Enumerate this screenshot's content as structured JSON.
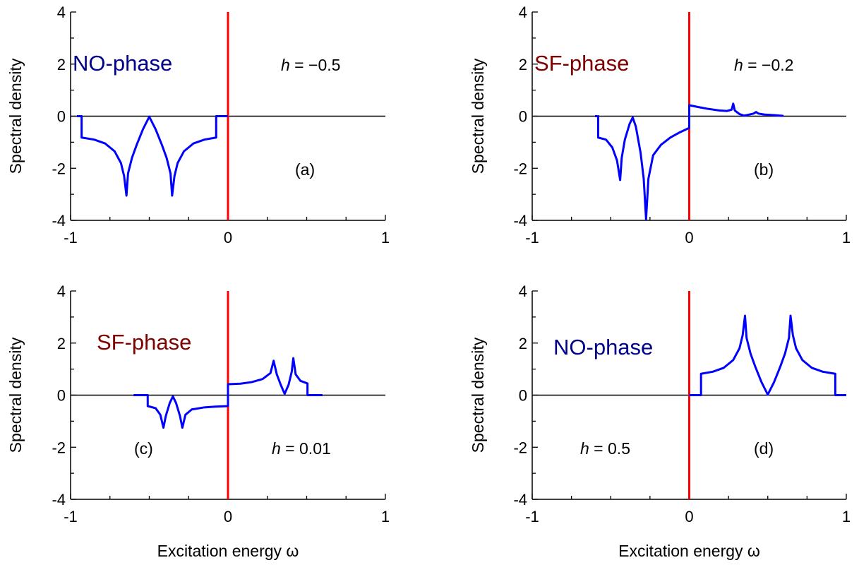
{
  "chart_data": [
    {
      "type": "line",
      "panel": "(a)",
      "phase_label": "NO-phase",
      "phase_color": "#00008b",
      "h_label": "h",
      "h_value": " = −0.5",
      "xlabel": "",
      "ylabel": "Spectral density",
      "xlim": [
        -1,
        1
      ],
      "ylim": [
        -4,
        4
      ],
      "xticks": [
        "-1",
        "0",
        "1"
      ],
      "yticks": [
        "-4",
        "-2",
        "0",
        "2",
        "4"
      ],
      "zero_line_color": "#000000",
      "marker_line_x": 0,
      "marker_line_color": "#ff0000",
      "series": [
        {
          "color": "#0000ff",
          "points": [
            [
              -0.96,
              0
            ],
            [
              -0.93,
              0
            ],
            [
              -0.93,
              -0.82
            ],
            [
              -0.85,
              -0.9
            ],
            [
              -0.78,
              -1.05
            ],
            [
              -0.72,
              -1.35
            ],
            [
              -0.68,
              -1.8
            ],
            [
              -0.66,
              -2.3
            ],
            [
              -0.645,
              -3.05
            ],
            [
              -0.635,
              -2.2
            ],
            [
              -0.61,
              -1.6
            ],
            [
              -0.58,
              -1.1
            ],
            [
              -0.54,
              -0.5
            ],
            [
              -0.5,
              -0.02
            ],
            [
              -0.46,
              -0.5
            ],
            [
              -0.42,
              -1.1
            ],
            [
              -0.39,
              -1.6
            ],
            [
              -0.365,
              -2.2
            ],
            [
              -0.355,
              -3.05
            ],
            [
              -0.34,
              -2.3
            ],
            [
              -0.32,
              -1.8
            ],
            [
              -0.28,
              -1.35
            ],
            [
              -0.22,
              -1.05
            ],
            [
              -0.15,
              -0.9
            ],
            [
              -0.075,
              -0.82
            ],
            [
              -0.075,
              0
            ],
            [
              0,
              0
            ]
          ]
        }
      ]
    },
    {
      "type": "line",
      "panel": "(b)",
      "phase_label": "SF-phase",
      "phase_color": "#800000",
      "h_label": "h",
      "h_value": " = −0.2",
      "xlabel": "",
      "ylabel": "Spectral density",
      "xlim": [
        -1,
        1
      ],
      "ylim": [
        -4,
        4
      ],
      "xticks": [
        "-1",
        "0",
        "1"
      ],
      "yticks": [
        "-4",
        "-2",
        "0",
        "2",
        "4"
      ],
      "zero_line_color": "#000000",
      "marker_line_x": 0,
      "marker_line_color": "#ff0000",
      "series": [
        {
          "color": "#0000ff",
          "points": [
            [
              -0.6,
              0
            ],
            [
              -0.58,
              0
            ],
            [
              -0.58,
              -0.82
            ],
            [
              -0.53,
              -0.9
            ],
            [
              -0.49,
              -1.2
            ],
            [
              -0.46,
              -1.7
            ],
            [
              -0.44,
              -2.45
            ],
            [
              -0.43,
              -1.6
            ],
            [
              -0.41,
              -0.9
            ],
            [
              -0.38,
              -0.3
            ],
            [
              -0.36,
              -0.05
            ],
            [
              -0.34,
              -0.4
            ],
            [
              -0.31,
              -1.4
            ],
            [
              -0.29,
              -2.4
            ],
            [
              -0.275,
              -3.95
            ],
            [
              -0.26,
              -2.4
            ],
            [
              -0.23,
              -1.5
            ],
            [
              -0.18,
              -1.1
            ],
            [
              -0.12,
              -0.82
            ],
            [
              -0.06,
              -0.62
            ],
            [
              0,
              -0.45
            ],
            [
              0,
              0.42
            ],
            [
              0.05,
              0.36
            ],
            [
              0.12,
              0.28
            ],
            [
              0.19,
              0.22
            ],
            [
              0.24,
              0.2
            ],
            [
              0.27,
              0.25
            ],
            [
              0.28,
              0.48
            ],
            [
              0.29,
              0.22
            ],
            [
              0.32,
              0.08
            ],
            [
              0.35,
              0.02
            ],
            [
              0.38,
              0.06
            ],
            [
              0.41,
              0.1
            ],
            [
              0.425,
              0.16
            ],
            [
              0.44,
              0.1
            ],
            [
              0.48,
              0.06
            ],
            [
              0.54,
              0.04
            ],
            [
              0.6,
              0.01
            ]
          ]
        }
      ]
    },
    {
      "type": "line",
      "panel": "(c)",
      "phase_label": "SF-phase",
      "phase_color": "#800000",
      "h_label": "h",
      "h_value": " = 0.01",
      "xlabel": "Excitation energy ω",
      "ylabel": "Spectral density",
      "xlim": [
        -1,
        1
      ],
      "ylim": [
        -4,
        4
      ],
      "xticks": [
        "-1",
        "0",
        "1"
      ],
      "yticks": [
        "-4",
        "-2",
        "0",
        "2",
        "4"
      ],
      "zero_line_color": "#000000",
      "marker_line_x": 0,
      "marker_line_color": "#ff0000",
      "series": [
        {
          "color": "#0000ff",
          "points": [
            [
              -0.6,
              0
            ],
            [
              -0.51,
              0
            ],
            [
              -0.51,
              -0.42
            ],
            [
              -0.46,
              -0.5
            ],
            [
              -0.43,
              -0.75
            ],
            [
              -0.41,
              -1.25
            ],
            [
              -0.395,
              -0.8
            ],
            [
              -0.37,
              -0.3
            ],
            [
              -0.35,
              -0.05
            ],
            [
              -0.33,
              -0.3
            ],
            [
              -0.305,
              -0.8
            ],
            [
              -0.29,
              -1.25
            ],
            [
              -0.27,
              -0.75
            ],
            [
              -0.23,
              -0.55
            ],
            [
              -0.15,
              -0.47
            ],
            [
              -0.08,
              -0.44
            ],
            [
              0,
              -0.42
            ],
            [
              0,
              0.42
            ],
            [
              0.08,
              0.44
            ],
            [
              0.15,
              0.5
            ],
            [
              0.22,
              0.62
            ],
            [
              0.27,
              0.85
            ],
            [
              0.29,
              1.32
            ],
            [
              0.31,
              0.8
            ],
            [
              0.335,
              0.4
            ],
            [
              0.36,
              0.05
            ],
            [
              0.385,
              0.4
            ],
            [
              0.405,
              0.9
            ],
            [
              0.415,
              1.42
            ],
            [
              0.43,
              0.8
            ],
            [
              0.46,
              0.55
            ],
            [
              0.505,
              0.45
            ],
            [
              0.505,
              0
            ],
            [
              0.6,
              0
            ]
          ]
        }
      ]
    },
    {
      "type": "line",
      "panel": "(d)",
      "phase_label": "NO-phase",
      "phase_color": "#00008b",
      "h_label": "h",
      "h_value": " = 0.5",
      "xlabel": "Excitation energy ω",
      "ylabel": "Spectral density",
      "xlim": [
        -1,
        1
      ],
      "ylim": [
        -4,
        4
      ],
      "xticks": [
        "-1",
        "0",
        "1"
      ],
      "yticks": [
        "-4",
        "-2",
        "0",
        "2",
        "4"
      ],
      "zero_line_color": "#000000",
      "marker_line_x": 0,
      "marker_line_color": "#ff0000",
      "series": [
        {
          "color": "#0000ff",
          "points": [
            [
              0,
              0
            ],
            [
              0.075,
              0
            ],
            [
              0.075,
              0.82
            ],
            [
              0.15,
              0.9
            ],
            [
              0.22,
              1.05
            ],
            [
              0.28,
              1.35
            ],
            [
              0.32,
              1.8
            ],
            [
              0.34,
              2.3
            ],
            [
              0.355,
              3.05
            ],
            [
              0.365,
              2.2
            ],
            [
              0.39,
              1.6
            ],
            [
              0.42,
              1.1
            ],
            [
              0.46,
              0.5
            ],
            [
              0.5,
              0.02
            ],
            [
              0.54,
              0.5
            ],
            [
              0.58,
              1.1
            ],
            [
              0.61,
              1.6
            ],
            [
              0.635,
              2.2
            ],
            [
              0.645,
              3.05
            ],
            [
              0.66,
              2.3
            ],
            [
              0.68,
              1.8
            ],
            [
              0.72,
              1.35
            ],
            [
              0.78,
              1.05
            ],
            [
              0.85,
              0.9
            ],
            [
              0.93,
              0.82
            ],
            [
              0.93,
              0
            ],
            [
              1,
              0
            ]
          ]
        }
      ]
    }
  ]
}
